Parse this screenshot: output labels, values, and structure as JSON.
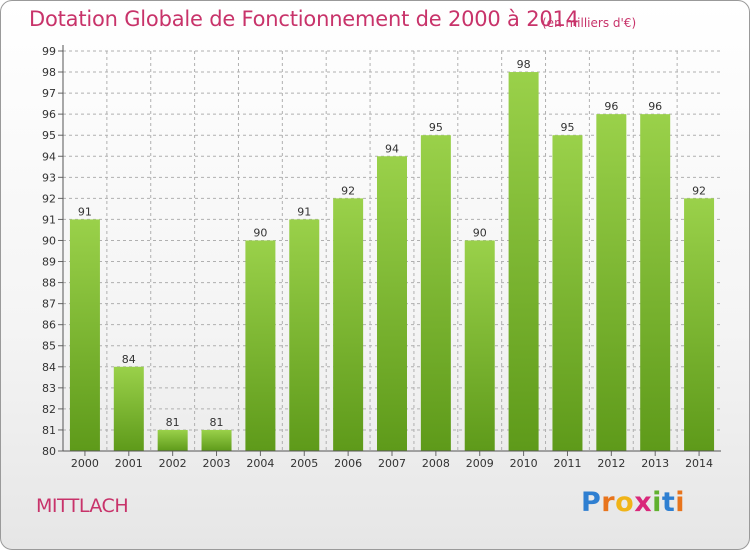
{
  "title": "Dotation Globale de Fonctionnement de 2000 à 2014",
  "subtitle": "(en milliers d'€)",
  "commune": "MITTLACH",
  "logo": {
    "letters": [
      "P",
      "r",
      "o",
      "x",
      "i",
      "t",
      "i"
    ]
  },
  "colors": {
    "title": "#c8336a",
    "bar_top": "#9ad14a",
    "bar_bottom": "#5e9a1a",
    "grid": "#b0b0b0"
  },
  "chart_data": {
    "type": "bar",
    "title": "Dotation Globale de Fonctionnement de 2000 à 2014",
    "xlabel": "",
    "ylabel": "",
    "categories": [
      "2000",
      "2001",
      "2002",
      "2003",
      "2004",
      "2005",
      "2006",
      "2007",
      "2008",
      "2009",
      "2010",
      "2011",
      "2012",
      "2013",
      "2014"
    ],
    "values": [
      91,
      84,
      81,
      81,
      90,
      91,
      92,
      94,
      95,
      90,
      98,
      95,
      96,
      96,
      92
    ],
    "ylim": [
      80,
      99
    ],
    "yticks": [
      80,
      81,
      82,
      83,
      84,
      85,
      86,
      87,
      88,
      89,
      90,
      91,
      92,
      93,
      94,
      95,
      96,
      97,
      98,
      99
    ],
    "grid": true
  }
}
